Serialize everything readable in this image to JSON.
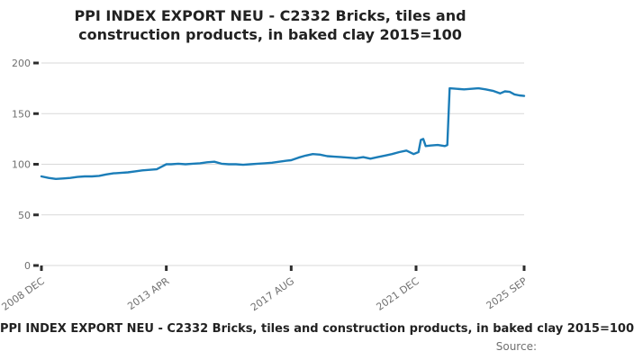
{
  "header": {
    "line1": "PPI INDEX EXPORT NEU - C2332 Bricks, tiles and",
    "line2": "construction products, in baked clay 2015=100"
  },
  "chart_data": {
    "type": "line",
    "title": "PPI INDEX EXPORT NEU - C2332 Bricks, tiles and construction products, in baked clay 2015=100",
    "xlabel": "",
    "ylabel": "",
    "ylim": [
      0,
      200
    ],
    "yticks": [
      0,
      50,
      100,
      150,
      200
    ],
    "xticks": [
      {
        "label": "2008 DEC",
        "date": "2008-12"
      },
      {
        "label": "2013 APR",
        "date": "2013-04"
      },
      {
        "label": "2017 AUG",
        "date": "2017-08"
      },
      {
        "label": "2021 DEC",
        "date": "2021-12"
      },
      {
        "label": "2025 SEP",
        "date": "2025-09"
      }
    ],
    "grid": "horizontal",
    "legend": "none",
    "line_color": "#1b7db8",
    "grid_color": "#d9d9d9",
    "tick_color": "#2e2e2e",
    "axis_text_color": "#707070",
    "x": [
      "2008-12",
      "2009-03",
      "2009-06",
      "2009-09",
      "2009-12",
      "2010-03",
      "2010-06",
      "2010-09",
      "2010-12",
      "2011-03",
      "2011-06",
      "2011-09",
      "2011-12",
      "2012-03",
      "2012-06",
      "2012-09",
      "2012-12",
      "2013-02",
      "2013-04",
      "2013-06",
      "2013-09",
      "2013-12",
      "2014-03",
      "2014-06",
      "2014-09",
      "2014-12",
      "2015-03",
      "2015-06",
      "2015-09",
      "2015-12",
      "2016-03",
      "2016-06",
      "2016-09",
      "2016-12",
      "2017-03",
      "2017-06",
      "2017-08",
      "2017-11",
      "2018-02",
      "2018-05",
      "2018-08",
      "2018-11",
      "2019-02",
      "2019-05",
      "2019-08",
      "2019-11",
      "2020-02",
      "2020-05",
      "2020-08",
      "2020-11",
      "2021-02",
      "2021-05",
      "2021-08",
      "2021-11",
      "2022-01",
      "2022-02",
      "2022-03",
      "2022-04",
      "2022-06",
      "2022-09",
      "2022-12",
      "2023-01",
      "2023-02",
      "2023-05",
      "2023-08",
      "2023-11",
      "2024-02",
      "2024-05",
      "2024-08",
      "2024-11",
      "2025-01",
      "2025-03",
      "2025-05",
      "2025-07",
      "2025-09"
    ],
    "values": [
      88,
      86.5,
      85.5,
      86,
      86.5,
      87.5,
      88,
      88,
      88.5,
      90,
      91,
      91.5,
      92,
      93,
      94,
      94.5,
      95,
      97.5,
      100,
      100,
      100.5,
      100,
      100.5,
      101,
      102,
      102.5,
      100.5,
      100,
      100,
      99.5,
      100,
      100.5,
      101,
      101.5,
      102.5,
      103.5,
      104,
      106.5,
      108.5,
      110,
      109.5,
      108,
      107.5,
      107,
      106.5,
      106,
      107,
      105.5,
      107,
      108.5,
      110,
      112,
      113.5,
      110,
      112,
      124,
      125,
      118,
      118.5,
      119,
      118,
      119,
      175,
      174.5,
      174,
      174.5,
      175,
      174,
      172.5,
      170,
      172,
      171.5,
      169,
      168,
      167.5
    ]
  },
  "footer": {
    "caption": "PPI INDEX EXPORT NEU - C2332 Bricks, tiles and construction products, in baked clay 2015=100",
    "source_label": "Source:"
  }
}
